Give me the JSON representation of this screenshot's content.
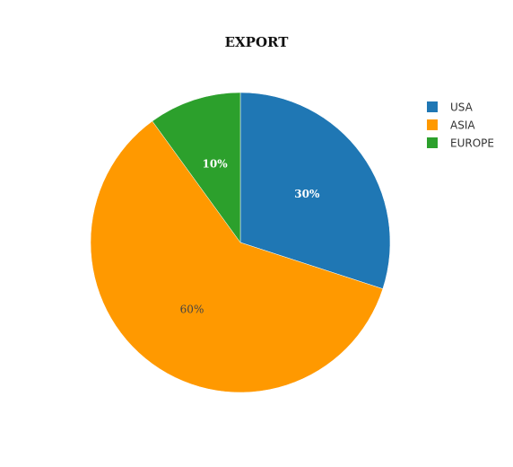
{
  "chart_data": {
    "type": "pie",
    "title": "EXPORT",
    "labels": [
      "USA",
      "ASIA",
      "EUROPE"
    ],
    "values": [
      30,
      60,
      10
    ],
    "value_labels": [
      "30%",
      "60%",
      "10%"
    ],
    "colors": [
      "#1f77b4",
      "#ff9900",
      "#2ca02c"
    ],
    "label_colors": [
      "#ffffff",
      "#444444",
      "#ffffff"
    ],
    "start_angle_deg": 0,
    "direction": "clockwise",
    "legend_position": "top-right"
  }
}
